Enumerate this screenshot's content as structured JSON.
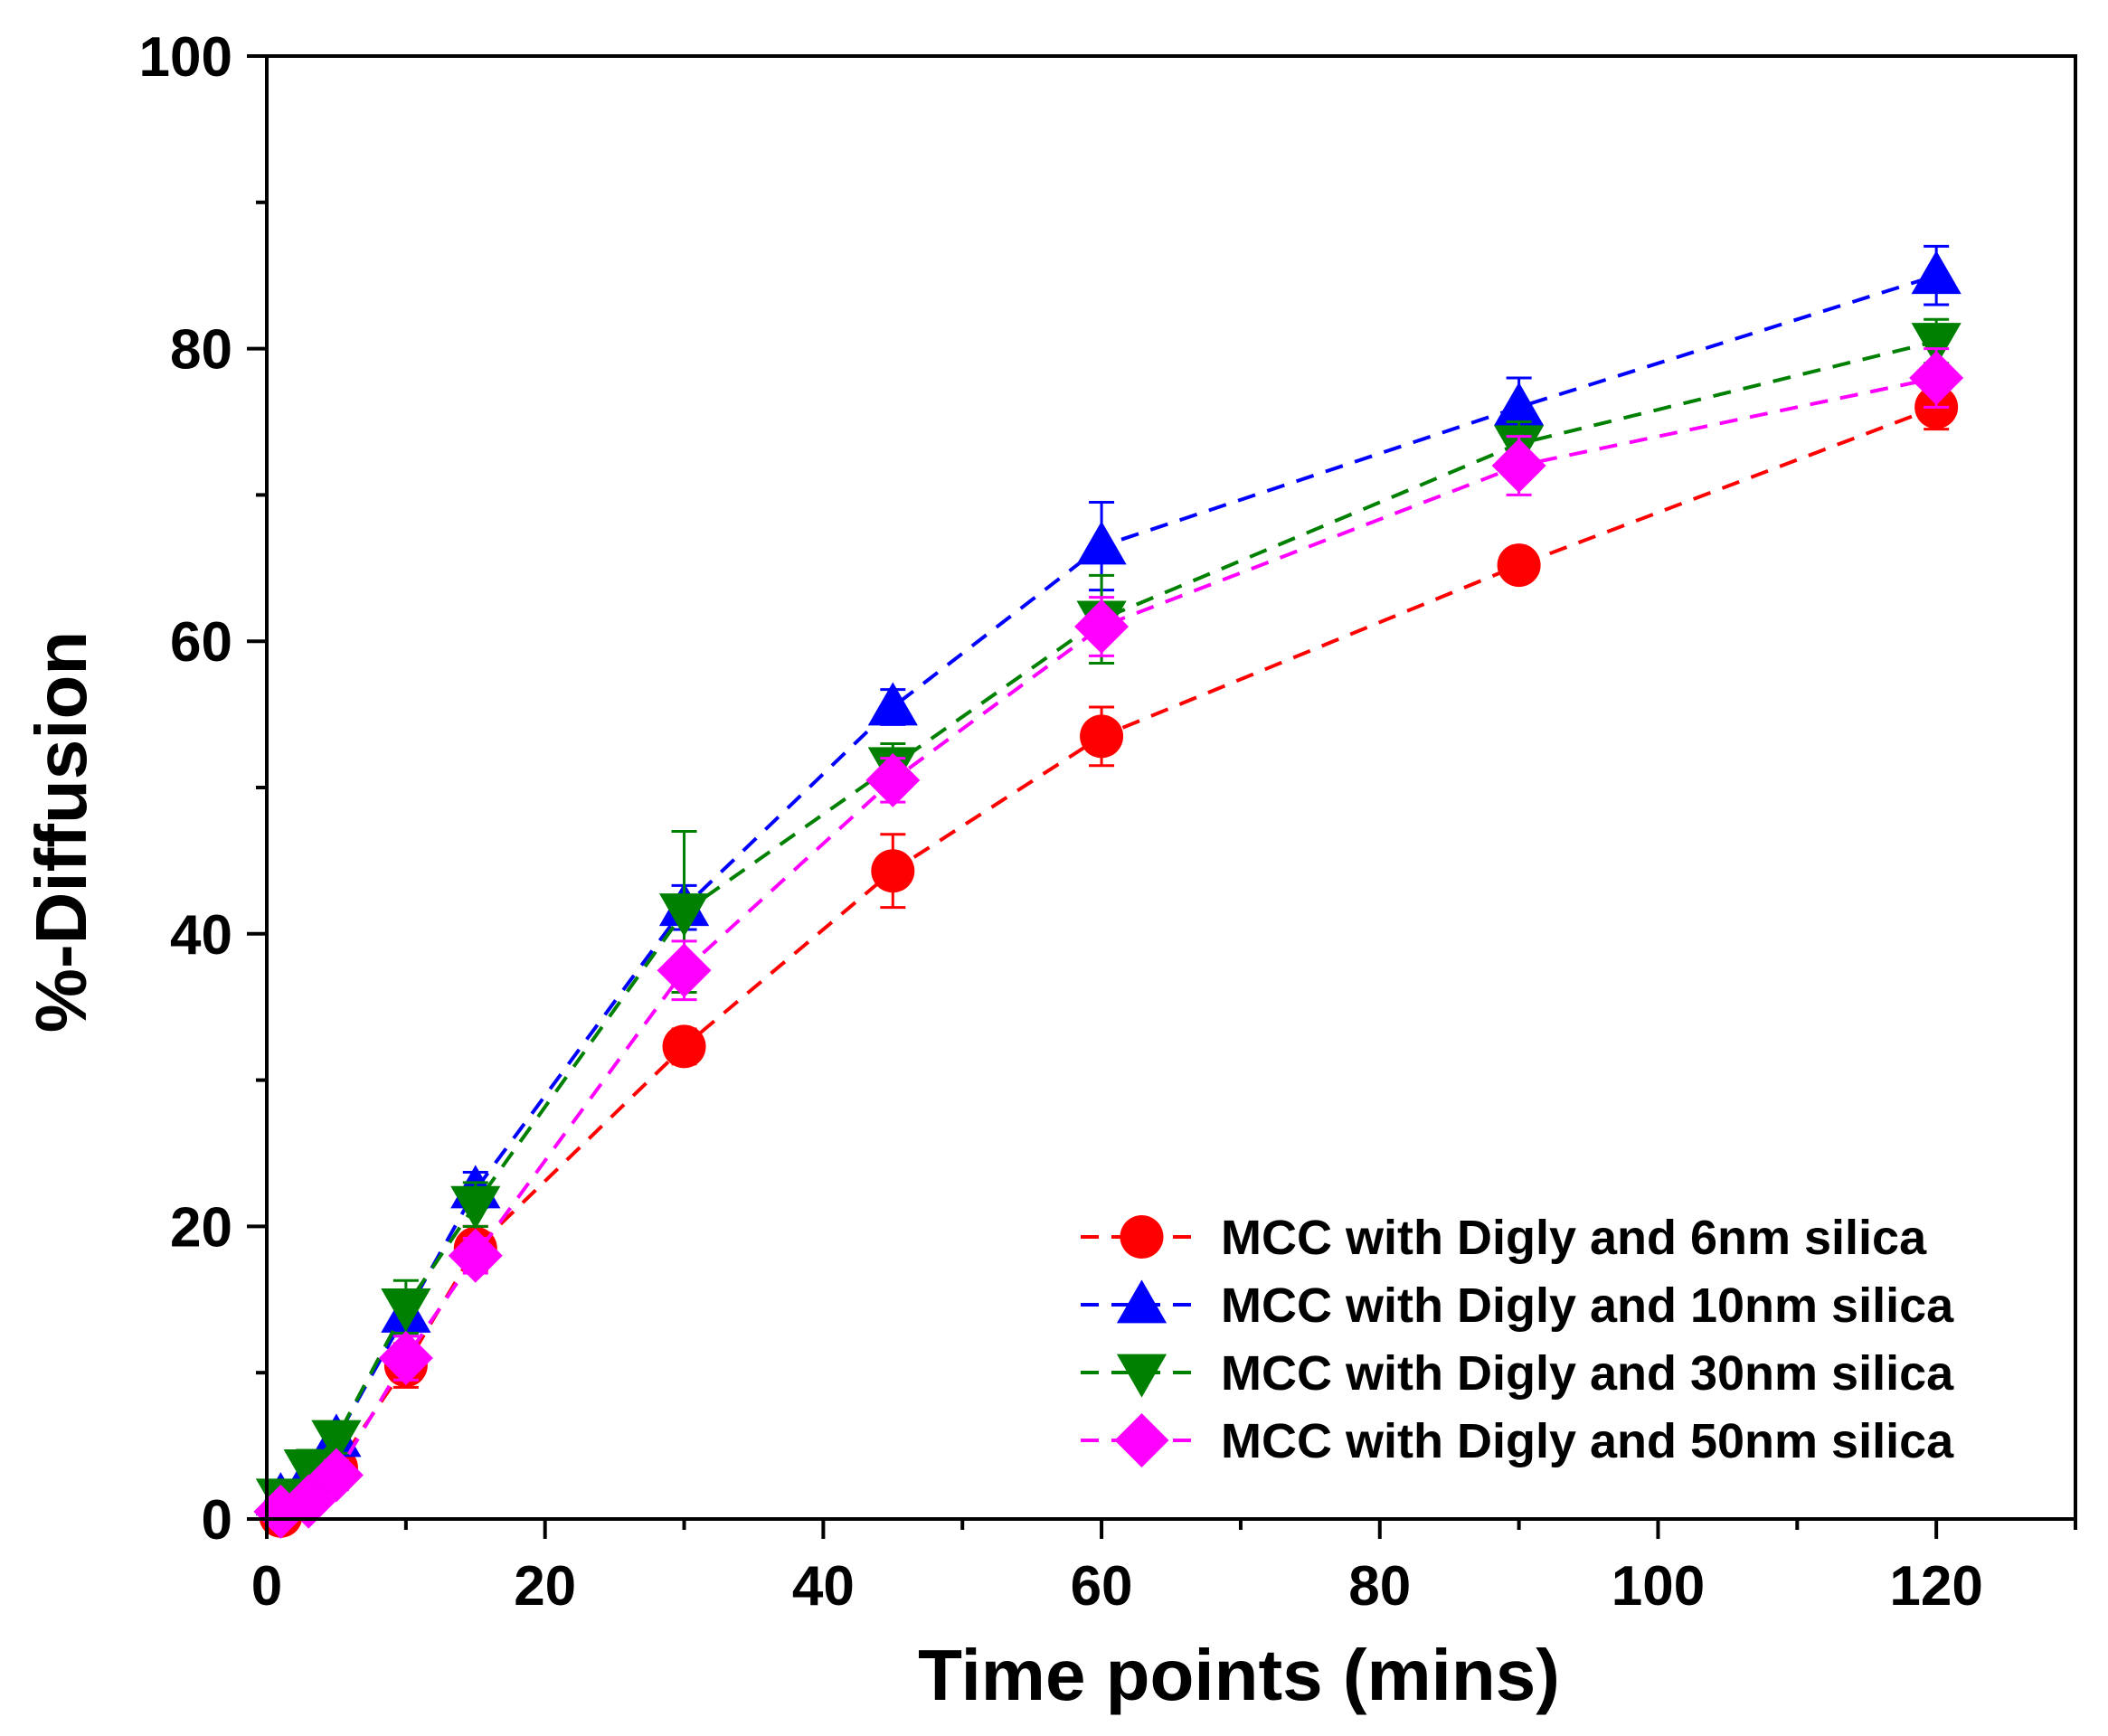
{
  "chart_data": {
    "type": "line",
    "xlabel": "Time points (mins)",
    "ylabel": "%-Diffusion",
    "xlim": [
      0,
      130
    ],
    "ylim": [
      0,
      100
    ],
    "xticks": [
      0,
      20,
      40,
      60,
      80,
      100,
      120
    ],
    "xtick_labels": [
      "0",
      "20",
      "40",
      "60",
      "80",
      "100",
      "120"
    ],
    "yticks": [
      0,
      20,
      40,
      60,
      80,
      100
    ],
    "ytick_labels": [
      "0",
      "20",
      "40",
      "60",
      "80",
      "100"
    ],
    "legend_position": "bottom-right",
    "grid": false,
    "error_bars": true,
    "line_style": "dashed",
    "series": [
      {
        "name": "MCC with Digly and 6nm silica",
        "color": "#ff0000",
        "marker": "circle",
        "x": [
          1,
          3,
          5,
          10,
          15,
          30,
          45,
          60,
          90,
          120
        ],
        "y": [
          0.2,
          1.5,
          3.5,
          10.5,
          18.5,
          32.3,
          44.3,
          53.5,
          65.2,
          76
        ],
        "error": [
          0.8,
          0.8,
          1.0,
          1.5,
          1.5,
          1.2,
          2.5,
          2.0,
          1.0,
          1.5
        ]
      },
      {
        "name": "MCC with Digly and 10nm silica",
        "color": "#0000ff",
        "marker": "triangle-up",
        "x": [
          1,
          3,
          5,
          10,
          15,
          30,
          45,
          60,
          90,
          120
        ],
        "y": [
          1.5,
          3.0,
          5.5,
          14.0,
          22.5,
          41.8,
          55.5,
          66.5,
          76,
          85
        ],
        "error": [
          0.8,
          1.0,
          1.0,
          1.5,
          1.2,
          1.5,
          1.2,
          3.0,
          2.0,
          2.0
        ]
      },
      {
        "name": "MCC with Digly and 30nm silica",
        "color": "#008000",
        "marker": "triangle-down",
        "x": [
          1,
          3,
          5,
          10,
          15,
          30,
          45,
          60,
          90,
          120
        ],
        "y": [
          1.5,
          3.5,
          5.5,
          14.5,
          21.5,
          41.5,
          51.5,
          61.5,
          73.5,
          80.5
        ],
        "error": [
          0.8,
          1.2,
          1.0,
          1.8,
          1.5,
          5.5,
          1.5,
          3.0,
          1.5,
          1.5
        ]
      },
      {
        "name": "MCC with Digly and 50nm silica",
        "color": "#ff00ff",
        "marker": "diamond",
        "x": [
          1,
          3,
          5,
          10,
          15,
          30,
          45,
          60,
          90,
          120
        ],
        "y": [
          0.5,
          1.2,
          3.0,
          11.0,
          18.0,
          37.5,
          50.5,
          61.0,
          72.0,
          78
        ],
        "error": [
          0.5,
          0.8,
          1.0,
          1.5,
          1.2,
          2.0,
          1.5,
          2.0,
          2.0,
          2.0
        ]
      }
    ]
  }
}
